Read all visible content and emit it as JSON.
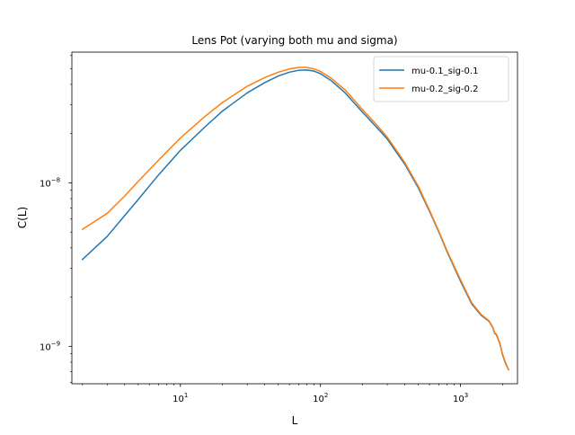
{
  "chart_data": {
    "type": "line",
    "title": "Lens Pot (varying both mu and sigma)",
    "xlabel": "L",
    "ylabel": "C(L)",
    "xscale": "log",
    "yscale": "log",
    "xlim": [
      1.68,
      2550
    ],
    "ylim": [
      5.9e-10,
      6.3e-08
    ],
    "grid": false,
    "legend_position": "top-right",
    "x_ticks": [
      {
        "value": 10,
        "base": "10",
        "exp": "1"
      },
      {
        "value": 100,
        "base": "10",
        "exp": "2"
      },
      {
        "value": 1000,
        "base": "10",
        "exp": "3"
      }
    ],
    "y_ticks": [
      {
        "value": 1e-08,
        "base": "10",
        "exp": "−8"
      },
      {
        "value": 1e-09,
        "base": "10",
        "exp": "−9"
      }
    ],
    "series": [
      {
        "name": "mu-0.1_sig-0.1",
        "color": "#1f77b4",
        "x": [
          2,
          3,
          4,
          5,
          7,
          10,
          15,
          20,
          30,
          40,
          50,
          60,
          70,
          80,
          90,
          100,
          120,
          150,
          200,
          250,
          300,
          350,
          400,
          500,
          600,
          700,
          800,
          1000,
          1200,
          1400,
          1600,
          1700,
          1750,
          1800,
          1900,
          2000,
          2100,
          2200
        ],
        "y": [
          3.4e-09,
          4.7e-09,
          6.3e-09,
          7.9e-09,
          1.12e-08,
          1.58e-08,
          2.2e-08,
          2.75e-08,
          3.55e-08,
          4.1e-08,
          4.5e-08,
          4.75e-08,
          4.88e-08,
          4.9e-08,
          4.82e-08,
          4.65e-08,
          4.2e-08,
          3.55e-08,
          2.7e-08,
          2.2e-08,
          1.85e-08,
          1.53e-08,
          1.3e-08,
          9.3e-09,
          6.7e-09,
          5e-09,
          3.8e-09,
          2.5e-09,
          1.82e-09,
          1.55e-09,
          1.42e-09,
          1.3e-09,
          1.2e-09,
          1.18e-09,
          1.05e-09,
          8.8e-10,
          7.8e-10,
          7.2e-10
        ]
      },
      {
        "name": "mu-0.2_sig-0.2",
        "color": "#ff7f0e",
        "x": [
          2,
          3,
          4,
          5,
          7,
          10,
          15,
          20,
          30,
          40,
          50,
          60,
          70,
          80,
          90,
          100,
          120,
          150,
          200,
          250,
          300,
          350,
          400,
          500,
          600,
          700,
          800,
          1000,
          1200,
          1400,
          1600,
          1700,
          1750,
          1800,
          1900,
          2000,
          2100,
          2200
        ],
        "y": [
          5.2e-09,
          6.5e-09,
          8.3e-09,
          1.02e-08,
          1.38e-08,
          1.88e-08,
          2.55e-08,
          3.1e-08,
          3.9e-08,
          4.4e-08,
          4.75e-08,
          4.97e-08,
          5.08e-08,
          5.08e-08,
          4.97e-08,
          4.8e-08,
          4.35e-08,
          3.7e-08,
          2.8e-08,
          2.28e-08,
          1.9e-08,
          1.57e-08,
          1.33e-08,
          9.5e-09,
          6.8e-09,
          5.05e-09,
          3.85e-09,
          2.55e-09,
          1.85e-09,
          1.57e-09,
          1.43e-09,
          1.31e-09,
          1.21e-09,
          1.19e-09,
          1.06e-09,
          8.9e-10,
          7.9e-10,
          7.2e-10
        ]
      }
    ]
  }
}
